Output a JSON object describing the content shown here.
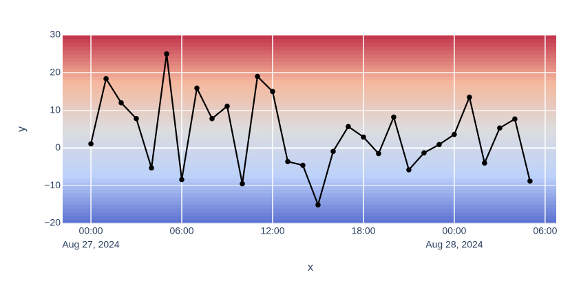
{
  "chart_data": {
    "type": "line",
    "x_title": "x",
    "y_title": "y",
    "x": [
      "2024-08-27 00:00",
      "2024-08-27 01:00",
      "2024-08-27 02:00",
      "2024-08-27 03:00",
      "2024-08-27 04:00",
      "2024-08-27 05:00",
      "2024-08-27 06:00",
      "2024-08-27 07:00",
      "2024-08-27 08:00",
      "2024-08-27 09:00",
      "2024-08-27 10:00",
      "2024-08-27 11:00",
      "2024-08-27 12:00",
      "2024-08-27 13:00",
      "2024-08-27 14:00",
      "2024-08-27 15:00",
      "2024-08-27 16:00",
      "2024-08-27 17:00",
      "2024-08-27 18:00",
      "2024-08-27 19:00",
      "2024-08-27 20:00",
      "2024-08-27 21:00",
      "2024-08-27 22:00",
      "2024-08-27 23:00",
      "2024-08-28 00:00",
      "2024-08-28 01:00",
      "2024-08-28 02:00",
      "2024-08-28 03:00",
      "2024-08-28 04:00",
      "2024-08-28 05:00"
    ],
    "values": [
      1.1,
      18.4,
      12.0,
      7.8,
      -5.3,
      25.0,
      -8.4,
      15.9,
      7.8,
      11.1,
      -9.5,
      19.0,
      15.0,
      -3.6,
      -4.6,
      -15.1,
      -0.9,
      5.7,
      2.9,
      -1.5,
      8.2,
      -5.8,
      -1.3,
      0.9,
      3.6,
      13.5,
      -4.0,
      5.3,
      7.7,
      -8.8
    ],
    "color": "#000000",
    "xlim": [
      "2024-08-26 22:08",
      "2024-08-28 06:44"
    ],
    "xticks": [
      {
        "value": "2024-08-27 00:00",
        "label": "00:00"
      },
      {
        "value": "2024-08-27 06:00",
        "label": "06:00"
      },
      {
        "value": "2024-08-27 12:00",
        "label": "12:00"
      },
      {
        "value": "2024-08-27 18:00",
        "label": "18:00"
      },
      {
        "value": "2024-08-28 00:00",
        "label": "00:00"
      },
      {
        "value": "2024-08-28 06:00",
        "label": "06:00"
      }
    ],
    "xtick_sublabels": [
      {
        "value": "2024-08-27 00:00",
        "label": "Aug 27, 2024"
      },
      {
        "value": "2024-08-28 00:00",
        "label": "Aug 28, 2024"
      }
    ],
    "ylim": [
      -20,
      30
    ],
    "yticks": [
      {
        "value": -20,
        "label": "−20"
      },
      {
        "value": -10,
        "label": "−10"
      },
      0,
      10,
      20,
      30
    ],
    "background_colorscale": [
      "#5a6fd0",
      "#bcd1fa",
      "#dcdcde",
      "#f5b89e",
      "#c2344b"
    ],
    "grid": true
  }
}
